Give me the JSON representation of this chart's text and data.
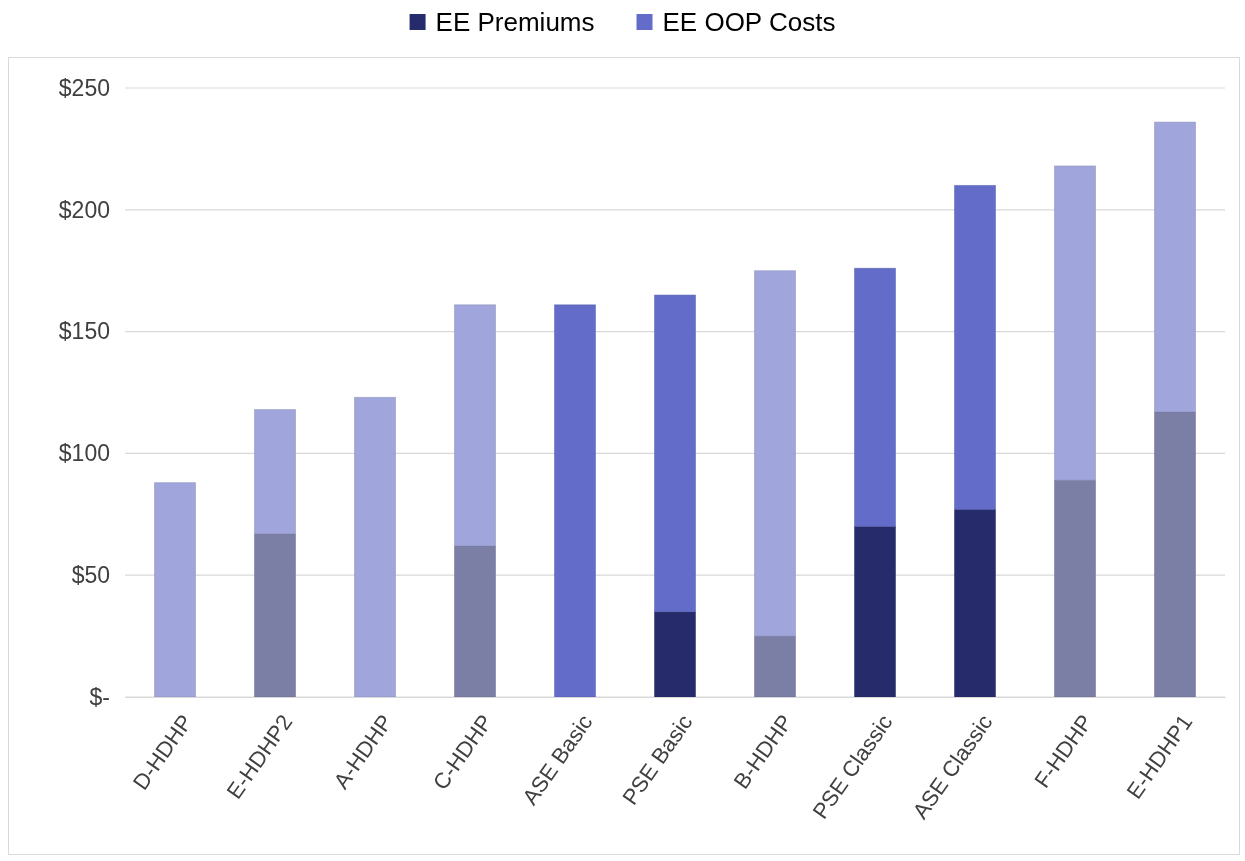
{
  "chart_data": {
    "type": "bar",
    "stacked": true,
    "categories": [
      "D-HDHP",
      "E-HDHP2",
      "A-HDHP",
      "C-HDHP",
      "ASE Basic",
      "PSE Basic",
      "B-HDHP",
      "PSE Classic",
      "ASE Classic",
      "F-HDHP",
      "E-HDHP1"
    ],
    "series": [
      {
        "name": "EE Premiums",
        "color": "#262c6b",
        "colors": [
          "#7b7fa6",
          "#7b7fa6",
          "#7b7fa6",
          "#7b7fa6",
          "#262c6b",
          "#262c6b",
          "#7b7fa6",
          "#262c6b",
          "#262c6b",
          "#7b7fa6",
          "#7b7fa6"
        ],
        "values": [
          0,
          67,
          0,
          62,
          0,
          35,
          25,
          70,
          77,
          89,
          117
        ]
      },
      {
        "name": "EE OOP Costs",
        "color": "#636cc8",
        "colors": [
          "#a0a6dc",
          "#a0a6dc",
          "#a0a6dc",
          "#a0a6dc",
          "#636cc8",
          "#636cc8",
          "#a0a6dc",
          "#636cc8",
          "#636cc8",
          "#a0a6dc",
          "#a0a6dc"
        ],
        "values": [
          88,
          51,
          123,
          99,
          161,
          130,
          150,
          106,
          133,
          129,
          119
        ]
      }
    ],
    "ylim": [
      0,
      250
    ],
    "yticks": [
      {
        "value": 0,
        "label": "$-"
      },
      {
        "value": 50,
        "label": "$50"
      },
      {
        "value": 100,
        "label": "$100"
      },
      {
        "value": 150,
        "label": "$150"
      },
      {
        "value": 200,
        "label": "$200"
      },
      {
        "value": 250,
        "label": "$250"
      }
    ],
    "grid": "y",
    "legend": "top"
  }
}
